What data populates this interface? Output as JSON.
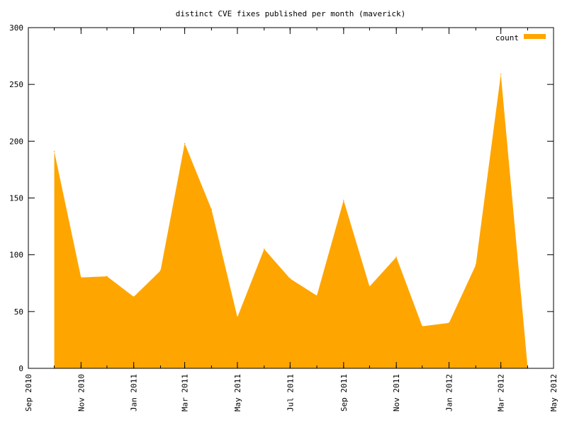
{
  "chart_data": {
    "type": "area",
    "title": "distinct CVE fixes published per month (maverick)",
    "xlabel": "",
    "ylabel": "",
    "legend_position": "top-right",
    "grid": false,
    "ylim": [
      0,
      300
    ],
    "xlim": [
      "2010-09-01",
      "2012-05-01"
    ],
    "yticks": [
      0,
      50,
      100,
      150,
      200,
      250,
      300
    ],
    "xticks": [
      {
        "date": "2010-09-01",
        "label": "Sep 2010"
      },
      {
        "date": "2010-11-01",
        "label": "Nov 2010"
      },
      {
        "date": "2011-01-01",
        "label": "Jan 2011"
      },
      {
        "date": "2011-03-01",
        "label": "Mar 2011"
      },
      {
        "date": "2011-05-01",
        "label": "May 2011"
      },
      {
        "date": "2011-07-01",
        "label": "Jul 2011"
      },
      {
        "date": "2011-09-01",
        "label": "Sep 2011"
      },
      {
        "date": "2011-11-01",
        "label": "Nov 2011"
      },
      {
        "date": "2012-01-01",
        "label": "Jan 2012"
      },
      {
        "date": "2012-03-01",
        "label": "Mar 2012"
      },
      {
        "date": "2012-05-01",
        "label": "May 2012"
      }
    ],
    "series": [
      {
        "name": "count",
        "color": "#ffa500",
        "x": [
          "2010-10-01",
          "2010-11-01",
          "2010-12-01",
          "2011-01-01",
          "2011-02-01",
          "2011-03-01",
          "2011-04-01",
          "2011-05-01",
          "2011-06-01",
          "2011-07-01",
          "2011-08-01",
          "2011-09-01",
          "2011-10-01",
          "2011-11-01",
          "2011-12-01",
          "2012-01-01",
          "2012-02-01",
          "2012-03-01",
          "2012-04-01"
        ],
        "values": [
          191,
          80,
          81,
          63,
          86,
          198,
          140,
          45,
          105,
          79,
          64,
          148,
          72,
          98,
          37,
          40,
          91,
          259,
          1
        ]
      }
    ]
  }
}
